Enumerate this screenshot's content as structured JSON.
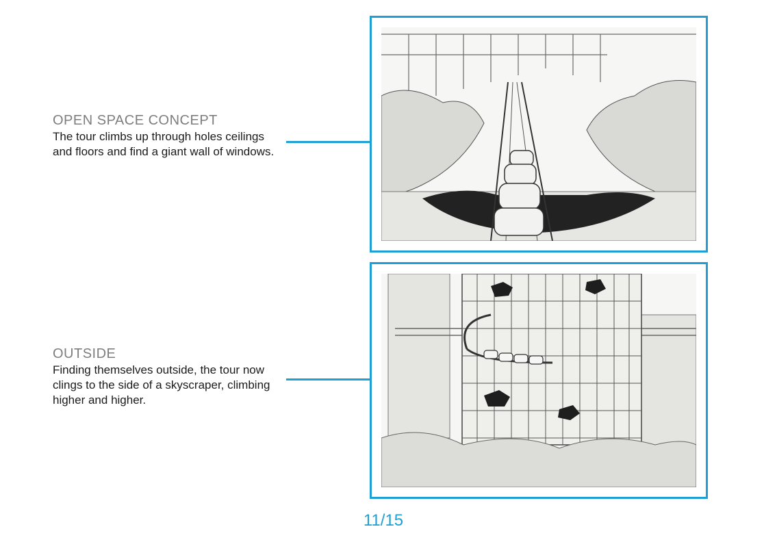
{
  "panels": [
    {
      "title": "OPEN SPACE CONCEPT",
      "description": "The tour climbs up through holes ceilings and floors and find a giant wall of windows."
    },
    {
      "title": "OUTSIDE",
      "description": "Finding themselves outside, the tour now clings to the side of a skyscraper, climbing higher and higher."
    }
  ],
  "page_number": "11/15",
  "colors": {
    "accent": "#1ea0d4",
    "title_gray": "#7d7d7d"
  }
}
